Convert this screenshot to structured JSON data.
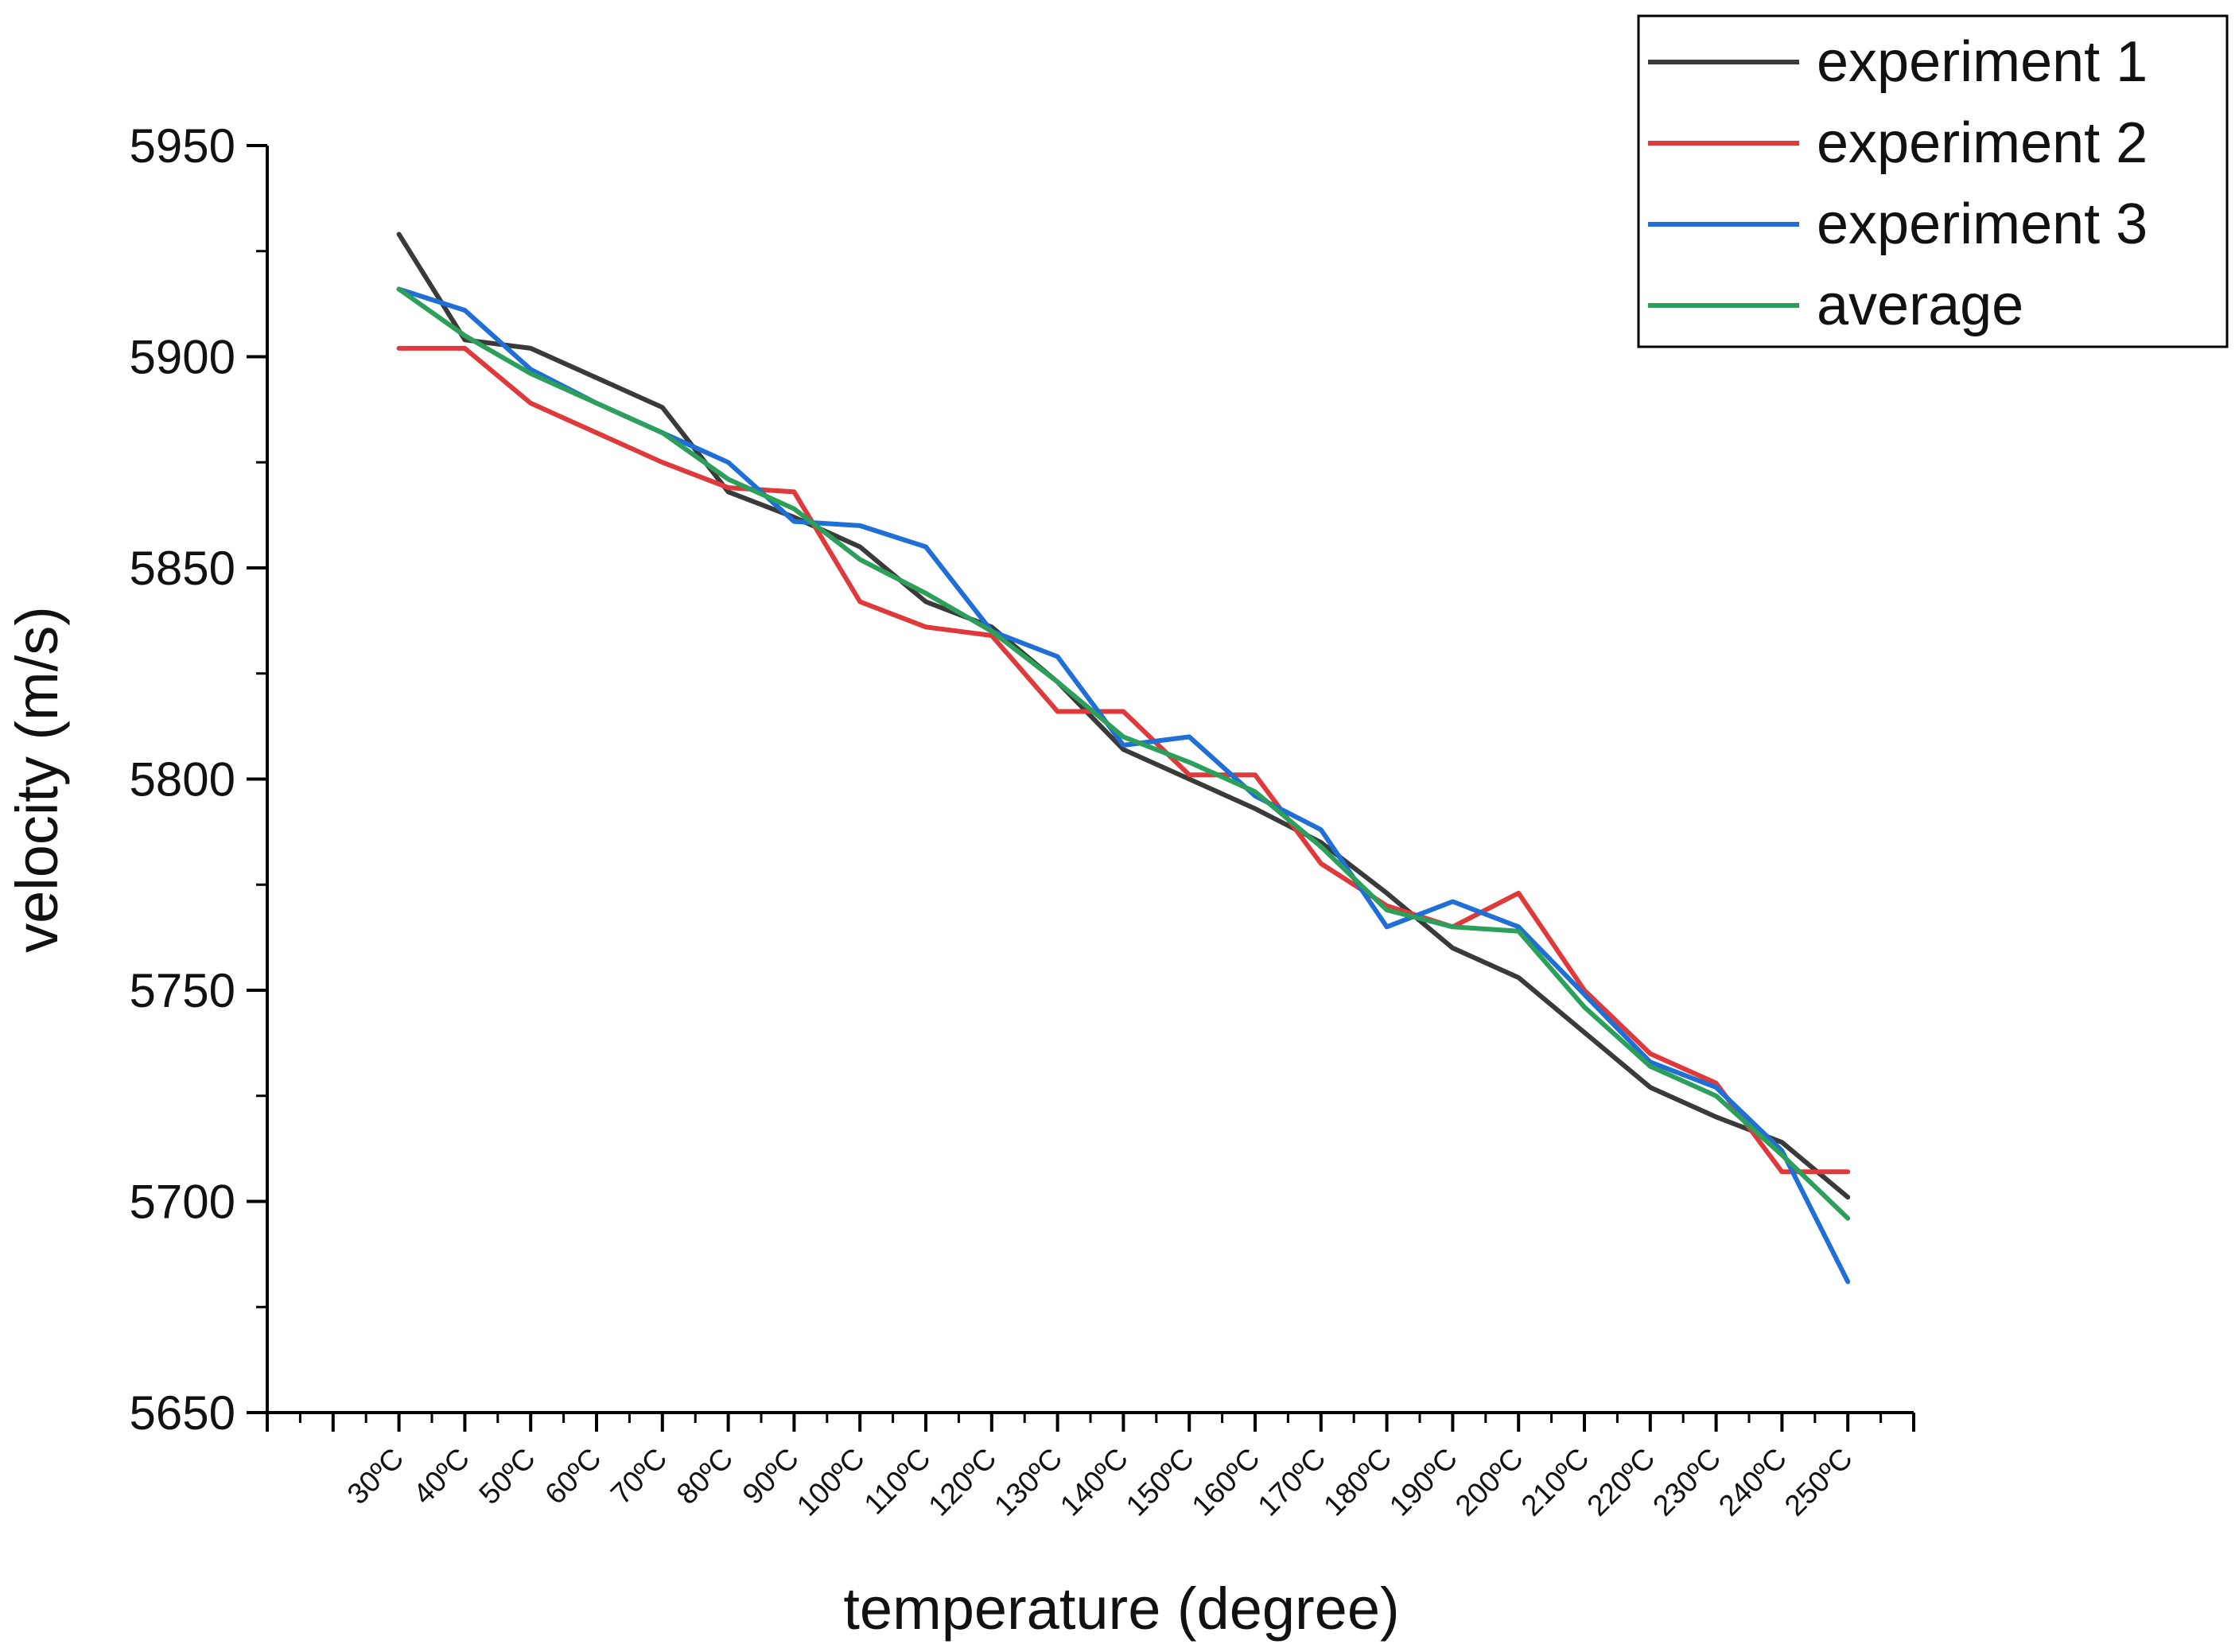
{
  "chart_data": {
    "type": "line",
    "title": "",
    "xlabel": "temperature (degree)",
    "ylabel": "velocity (m/s)",
    "ylim": [
      5650,
      5950
    ],
    "yticks": [
      "5650",
      "5700",
      "5750",
      "5800",
      "5850",
      "5900",
      "5950"
    ],
    "categories": [
      "30ºC",
      "40ºC",
      "50ºC",
      "60ºC",
      "70ºC",
      "80ºC",
      "90ºC",
      "100ºC",
      "110ºC",
      "120ºC",
      "130ºC",
      "140ºC",
      "150ºC",
      "160ºC",
      "170ºC",
      "180ºC",
      "190ºC",
      "200ºC",
      "210ºC",
      "220ºC",
      "230ºC",
      "240ºC",
      "250ºC"
    ],
    "legend_position": "top-right",
    "grid": false,
    "series": [
      {
        "name": "experiment 1",
        "color": "#3a3a3a",
        "values": [
          5929,
          5904,
          5902,
          5895,
          5888,
          5868,
          5862,
          5855,
          5842,
          5836,
          5823,
          5807,
          5800,
          5793,
          5785,
          5773,
          5760,
          5753,
          5740,
          5727,
          5720,
          5714,
          5701
        ]
      },
      {
        "name": "experiment 2",
        "color": "#e0393b",
        "values": [
          5902,
          5902,
          5889,
          5882,
          5875,
          5869,
          5868,
          5842,
          5836,
          5834,
          5816,
          5816,
          5801,
          5801,
          5780,
          5770,
          5765,
          5773,
          5750,
          5735,
          5728,
          5707,
          5707
        ]
      },
      {
        "name": "experiment 3",
        "color": "#1f6fd6",
        "values": [
          5916,
          5911,
          5897,
          5889,
          5882,
          5875,
          5861,
          5860,
          5855,
          5835,
          5829,
          5808,
          5810,
          5796,
          5788,
          5765,
          5771,
          5765,
          5749,
          5733,
          5727,
          5712,
          5681
        ]
      },
      {
        "name": "average",
        "color": "#2ca05a",
        "values": [
          5916,
          5905,
          5896,
          5889,
          5882,
          5871,
          5864,
          5852,
          5844,
          5835,
          5823,
          5810,
          5804,
          5797,
          5784,
          5769,
          5765,
          5764,
          5746,
          5732,
          5725,
          5711,
          5696
        ]
      }
    ]
  }
}
